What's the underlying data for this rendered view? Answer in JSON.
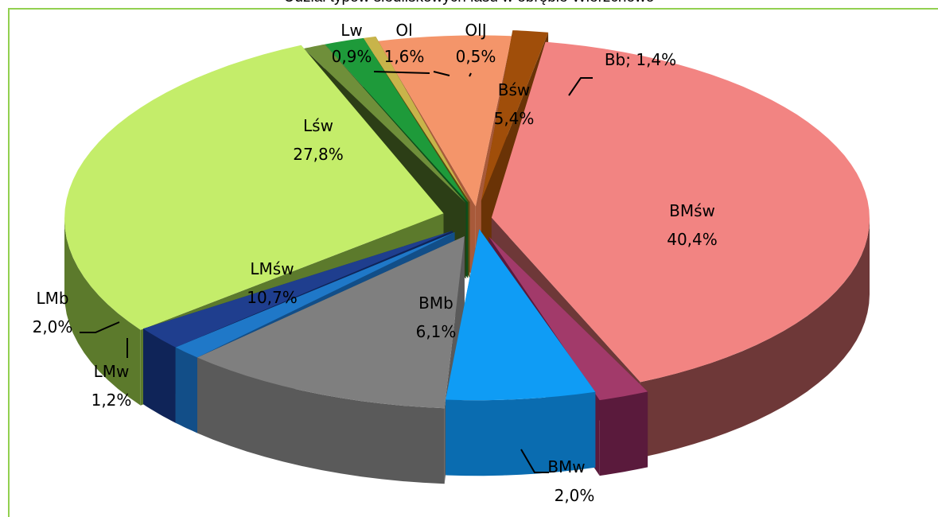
{
  "chart_data": {
    "type": "pie",
    "title": "Udział typów siedliskowych lasu w obrębie Wierzchowo",
    "exploded": true,
    "three_d": true,
    "slices": [
      {
        "label": "BMśw",
        "percent": "40,4%",
        "value": 40.4,
        "color": "#f28482",
        "side": "#6e3838",
        "label_inside": true
      },
      {
        "label": "BMw",
        "percent": "2,0%",
        "value": 2.0,
        "color": "#a23a6a",
        "side": "#5a1a3c",
        "label_inside": false
      },
      {
        "label": "BMb",
        "percent": "6,1%",
        "value": 6.1,
        "color": "#0f9cf5",
        "side": "#0a6cb0",
        "label_inside": true
      },
      {
        "label": "LMśw",
        "percent": "10,7%",
        "value": 10.7,
        "color": "#7f7f7f",
        "side": "#5a5a5a",
        "label_inside": true
      },
      {
        "label": "LMw",
        "percent": "1,2%",
        "value": 1.2,
        "color": "#1f78c8",
        "side": "#124e88",
        "label_inside": false
      },
      {
        "label": "LMb",
        "percent": "2,0%",
        "value": 2.0,
        "color": "#1f3e8e",
        "side": "#0f2458",
        "label_inside": false
      },
      {
        "label": "Lśw",
        "percent": "27,8%",
        "value": 27.8,
        "color": "#c4ed6a",
        "side": "#5c7a2c",
        "label_inside": true
      },
      {
        "label": "Lw",
        "percent": "0,9%",
        "value": 0.9,
        "color": "#6f8f3a",
        "side": "#2c3e16",
        "label_inside": false
      },
      {
        "label": "Ol",
        "percent": "1,6%",
        "value": 1.6,
        "color": "#1e9a3a",
        "side": "#0c4e1a",
        "label_inside": false
      },
      {
        "label": "OlJ",
        "percent": "0,5%",
        "value": 0.5,
        "color": "#c8b44a",
        "side": "#5a4a10",
        "label_inside": false
      },
      {
        "label": "Bśw",
        "percent": "5,4%",
        "value": 5.4,
        "color": "#f4956a",
        "side": "#a85a3a",
        "label_inside": true
      },
      {
        "label": "Bb",
        "percent": "1,4%",
        "value": 1.4,
        "color": "#a04e0a",
        "side": "#6a3306",
        "label_inside": false,
        "label_combined": "Bb; 1,4%"
      }
    ]
  },
  "colors": {
    "frame_border": "#92d050"
  }
}
